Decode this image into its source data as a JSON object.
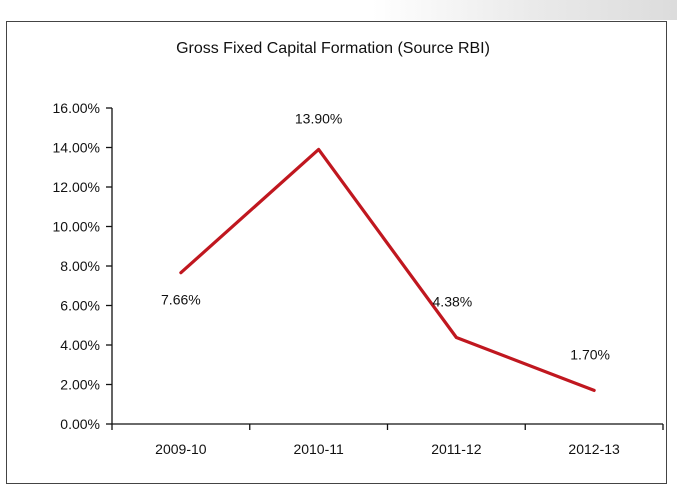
{
  "chart_data": {
    "type": "line",
    "title": "Gross Fixed Capital Formation (Source RBI)",
    "xlabel": "",
    "ylabel": "",
    "categories": [
      "2009-10",
      "2010-11",
      "2011-12",
      "2012-13"
    ],
    "series": [
      {
        "values": [
          7.66,
          13.9,
          4.38,
          1.7
        ],
        "labels": [
          "7.66%",
          "13.90%",
          "4.38%",
          "1.70%"
        ],
        "color": "#c0171f"
      }
    ],
    "ylim": [
      0,
      16
    ],
    "ytick_values": [
      0,
      2,
      4,
      6,
      8,
      10,
      12,
      14,
      16
    ],
    "ytick_labels": [
      "0.00%",
      "2.00%",
      "4.00%",
      "6.00%",
      "8.00%",
      "10.00%",
      "12.00%",
      "14.00%",
      "16.00%"
    ],
    "grid": false,
    "legend": "none"
  },
  "colors": {
    "axis": "#111111",
    "line": "#c0171f",
    "border": "#444444"
  }
}
